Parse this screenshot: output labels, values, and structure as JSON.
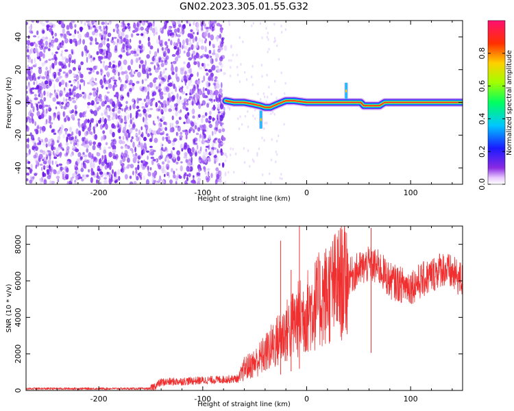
{
  "title": "GN02.2023.305.01.55.G32",
  "colors": {
    "snr_line": "#f03030",
    "ridge_center": "#ff2020",
    "noise": "#7a28f0"
  },
  "colorbar": {
    "label": "Normalized spectral amplitude",
    "range": [
      0,
      1
    ],
    "ticks": [
      0.0,
      0.2,
      0.4,
      0.6,
      0.8
    ],
    "tick_labels": [
      "0.0",
      "0.2",
      "0.4",
      "0.6",
      "0.8"
    ]
  },
  "chart_data": [
    {
      "type": "heatmap",
      "xlabel": "Height of straight line (km)",
      "ylabel": "Frequency (Hz)",
      "xlim": [
        -270,
        150
      ],
      "ylim": [
        -50,
        50
      ],
      "xticks": [
        -200,
        -100,
        0,
        100
      ],
      "xtick_labels": [
        "-200",
        "-100",
        "0",
        "100"
      ],
      "yticks": [
        -40,
        -20,
        0,
        20,
        40
      ],
      "ytick_labels": [
        "-40",
        "-20",
        "0",
        "20",
        "40"
      ],
      "noise_region": [
        -270,
        -78
      ],
      "ridge": {
        "x": [
          -78,
          -70,
          -60,
          -52,
          -45,
          -40,
          -35,
          -28,
          -20,
          -12,
          0,
          20,
          30,
          34,
          38,
          42,
          52,
          55,
          62,
          70,
          75,
          85,
          100,
          150
        ],
        "y": [
          1,
          0,
          0,
          -1,
          -2,
          -3,
          -3,
          -1,
          1,
          1,
          0,
          0,
          0,
          0,
          0,
          0,
          0,
          -2,
          -2,
          -2,
          0,
          0,
          0,
          0
        ]
      },
      "spikes": [
        {
          "x": 38,
          "y_from": 2,
          "y_to": 12
        },
        {
          "x": -44,
          "y_from": -5,
          "y_to": -16
        }
      ]
    },
    {
      "type": "line",
      "xlabel": "Height of straight line (km)",
      "ylabel": "SNR (10 * v/v)",
      "xlim": [
        -270,
        150
      ],
      "ylim": [
        0,
        9000
      ],
      "xticks": [
        -200,
        -100,
        0,
        100
      ],
      "xtick_labels": [
        "-200",
        "-100",
        "0",
        "100"
      ],
      "yticks": [
        0,
        2000,
        4000,
        6000,
        8000
      ],
      "ytick_labels": [
        "0",
        "2000",
        "4000",
        "6000",
        "8000"
      ],
      "envelope": {
        "x": [
          -270,
          -150,
          -140,
          -120,
          -100,
          -80,
          -65,
          -60,
          -50,
          -40,
          -30,
          -20,
          -10,
          0,
          10,
          20,
          30,
          40,
          50,
          60,
          70,
          80,
          90,
          100,
          110,
          120,
          130,
          140,
          150
        ],
        "y": [
          100,
          100,
          450,
          500,
          550,
          600,
          650,
          1200,
          1500,
          2000,
          2600,
          3200,
          3800,
          4300,
          4800,
          5300,
          5800,
          6200,
          6600,
          6900,
          6700,
          6000,
          5800,
          5700,
          6000,
          6300,
          6700,
          6400,
          6000
        ]
      },
      "spikes": [
        {
          "x": -25,
          "y": 8200
        },
        {
          "x": -15,
          "y": 6600
        },
        {
          "x": -7,
          "y": 9000
        },
        {
          "x": 62,
          "y": 8900
        }
      ]
    }
  ]
}
